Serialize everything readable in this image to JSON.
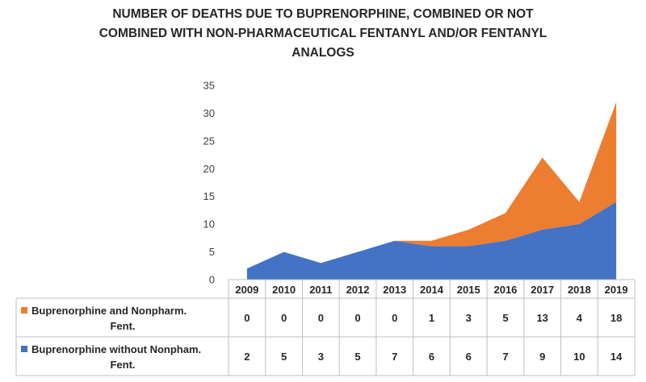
{
  "chart_data": {
    "type": "area",
    "stacked": true,
    "title_lines": [
      "NUMBER OF DEATHS DUE TO BUPRENORPHINE, COMBINED OR NOT",
      "COMBINED WITH NON-PHARMACEUTICAL FENTANYL AND/OR FENTANYL",
      "ANALOGS"
    ],
    "categories": [
      "2009",
      "2010",
      "2011",
      "2012",
      "2013",
      "2014",
      "2015",
      "2016",
      "2017",
      "2018",
      "2019"
    ],
    "series": [
      {
        "name": "Buprenorphine without Nonpham. Fent.",
        "name_lines": [
          "Buprenorphine without Nonpham.",
          "Fent."
        ],
        "color": "#4472c4",
        "values": [
          2,
          5,
          3,
          5,
          7,
          6,
          6,
          7,
          9,
          10,
          14
        ]
      },
      {
        "name": "Buprenorphine and Nonpharm. Fent.",
        "name_lines": [
          "Buprenorphine and Nonpharm.",
          "Fent."
        ],
        "color": "#ed7d31",
        "values": [
          0,
          0,
          0,
          0,
          0,
          1,
          3,
          5,
          13,
          4,
          18
        ]
      }
    ],
    "ylim": [
      0,
      35
    ],
    "yticks": [
      0,
      5,
      10,
      15,
      20,
      25,
      30,
      35
    ],
    "grid": false,
    "legend": "data-table"
  }
}
